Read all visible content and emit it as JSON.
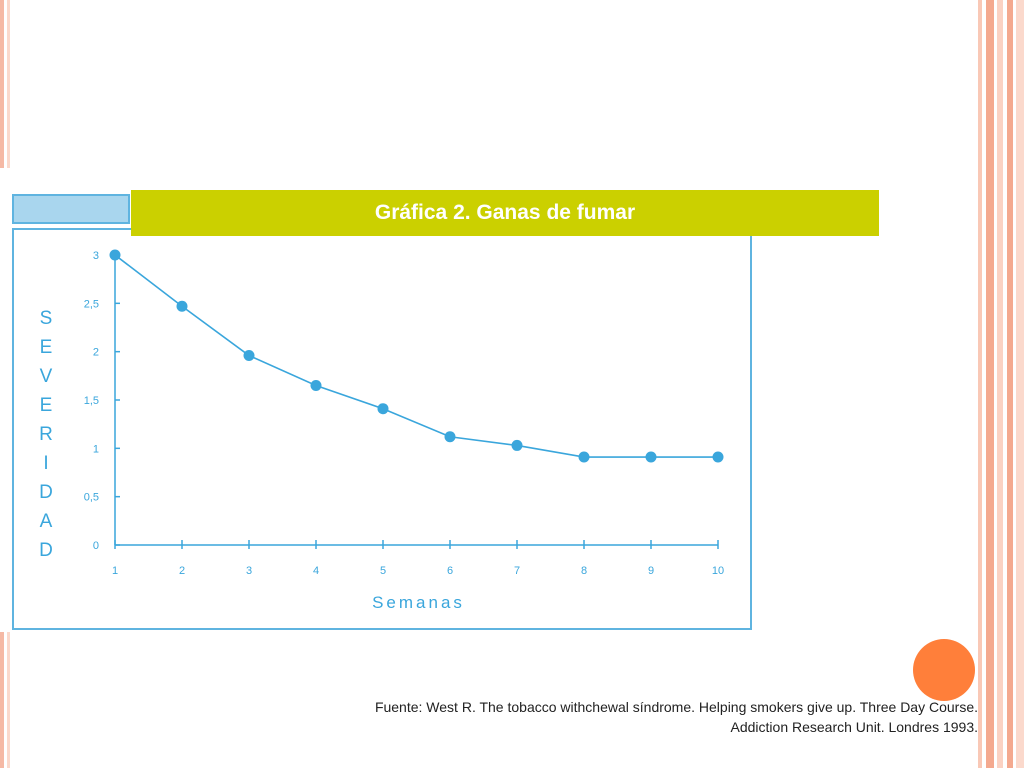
{
  "slide": {
    "title": "Gráfica 2. Ganas de fumar",
    "source_line1": "Fuente: West R. The tobacco withchewal síndrome. Helping smokers give up. Three Day Course.",
    "source_line2": "Addiction Research Unit. Londres 1993."
  },
  "colors": {
    "title_bar": "#cbd000",
    "chart_accent": "#3aa6dc",
    "orange_dot": "#ff7f3a"
  },
  "chart_data": {
    "type": "line",
    "title": "Gráfica 2. Ganas de fumar",
    "xlabel": "Semanas",
    "ylabel": "SEVERIDAD",
    "x": [
      1,
      2,
      3,
      4,
      5,
      6,
      7,
      8,
      9,
      10
    ],
    "y_tick_labels": [
      "0",
      "0,5",
      "1",
      "1,5",
      "2",
      "2,5",
      "3"
    ],
    "y_ticks": [
      0,
      0.5,
      1,
      1.5,
      2,
      2.5,
      3
    ],
    "ylim": [
      0,
      3
    ],
    "xlim": [
      1,
      10
    ],
    "series": [
      {
        "values": [
          3.0,
          2.47,
          1.96,
          1.65,
          1.41,
          1.12,
          1.03,
          0.91,
          0.91,
          0.91
        ]
      }
    ],
    "grid": false,
    "legend": "none"
  }
}
